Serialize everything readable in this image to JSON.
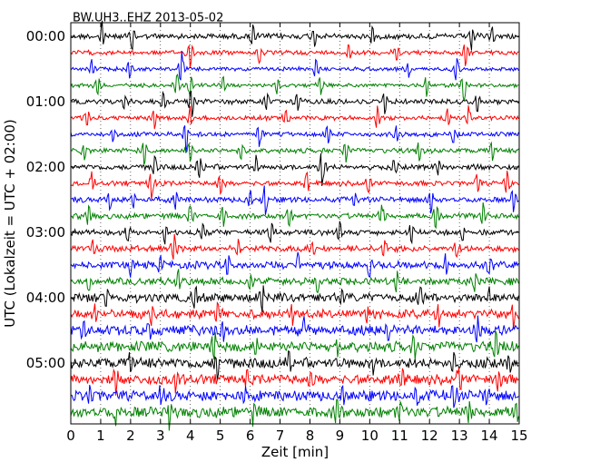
{
  "chart_data": {
    "type": "line",
    "title": "BW.UH3..EHZ 2013-05-02",
    "xlabel": "Zeit  [min]",
    "ylabel": "UTC (Lokalzeit = UTC + 02:00)",
    "xlim": [
      0,
      15
    ],
    "x_ticks": [
      "0",
      "1",
      "2",
      "3",
      "4",
      "5",
      "6",
      "7",
      "8",
      "9",
      "10",
      "11",
      "12",
      "13",
      "14",
      "15"
    ],
    "y_ticks": [
      "00:00",
      "01:00",
      "02:00",
      "03:00",
      "04:00",
      "05:00"
    ],
    "grid": "vertical dotted at each minute",
    "trace_minutes": 15,
    "trace_count": 24,
    "trace_colors": [
      "#000000",
      "#ff0000",
      "#0000ff",
      "#008000"
    ],
    "noise_level": [
      1.0,
      0.8,
      0.7,
      0.7,
      0.9,
      0.8,
      0.8,
      0.9,
      1.0,
      0.9,
      1.0,
      1.0,
      1.0,
      1.1,
      1.3,
      1.3,
      1.6,
      1.6,
      1.8,
      1.9,
      1.9,
      1.8,
      1.9,
      2.0
    ],
    "spikes": [
      [
        [
          1.05,
          1.0
        ],
        [
          2.05,
          1.0
        ],
        [
          6.1,
          0.9
        ],
        [
          8.15,
          0.7
        ],
        [
          10.1,
          0.8
        ],
        [
          13.4,
          1.0
        ],
        [
          14.1,
          0.7
        ]
      ],
      [
        [
          4.0,
          1.2
        ],
        [
          6.3,
          0.8
        ],
        [
          9.3,
          0.7
        ],
        [
          10.9,
          0.7
        ],
        [
          13.2,
          0.9
        ]
      ],
      [
        [
          0.7,
          0.7
        ],
        [
          1.95,
          0.8
        ],
        [
          3.7,
          1.4
        ],
        [
          8.2,
          0.8
        ],
        [
          11.3,
          0.7
        ],
        [
          12.9,
          1.0
        ]
      ],
      [
        [
          0.9,
          0.8
        ],
        [
          3.55,
          1.0
        ],
        [
          4.0,
          0.9
        ],
        [
          5.1,
          0.7
        ],
        [
          6.9,
          0.7
        ],
        [
          8.35,
          0.9
        ],
        [
          11.9,
          0.8
        ],
        [
          13.15,
          1.3
        ]
      ],
      [
        [
          1.8,
          0.7
        ],
        [
          3.1,
          0.8
        ],
        [
          4.05,
          1.4
        ],
        [
          6.55,
          0.8
        ],
        [
          7.6,
          0.7
        ],
        [
          10.5,
          0.8
        ],
        [
          13.6,
          0.8
        ]
      ],
      [
        [
          0.55,
          0.7
        ],
        [
          2.8,
          0.9
        ],
        [
          4.0,
          0.8
        ],
        [
          7.2,
          0.7
        ],
        [
          10.25,
          1.0
        ],
        [
          12.6,
          0.7
        ],
        [
          13.3,
          0.8
        ]
      ],
      [
        [
          1.4,
          0.7
        ],
        [
          3.85,
          1.3
        ],
        [
          6.3,
          0.9
        ],
        [
          8.6,
          0.7
        ],
        [
          10.9,
          0.7
        ],
        [
          12.8,
          0.8
        ]
      ],
      [
        [
          0.45,
          0.8
        ],
        [
          2.45,
          1.1
        ],
        [
          4.0,
          1.0
        ],
        [
          5.7,
          0.7
        ],
        [
          9.2,
          0.9
        ],
        [
          11.65,
          0.8
        ],
        [
          14.1,
          0.8
        ]
      ],
      [
        [
          2.8,
          0.9
        ],
        [
          4.3,
          1.0
        ],
        [
          6.2,
          0.8
        ],
        [
          8.4,
          1.4
        ],
        [
          10.8,
          0.8
        ],
        [
          12.3,
          0.8
        ]
      ],
      [
        [
          0.7,
          0.8
        ],
        [
          2.7,
          1.2
        ],
        [
          5.0,
          0.9
        ],
        [
          7.9,
          0.8
        ],
        [
          9.95,
          0.9
        ],
        [
          13.6,
          0.7
        ],
        [
          14.6,
          1.0
        ]
      ],
      [
        [
          1.3,
          0.8
        ],
        [
          2.1,
          0.7
        ],
        [
          3.5,
          0.7
        ],
        [
          6.0,
          0.8
        ],
        [
          6.5,
          1.3
        ],
        [
          9.5,
          0.8
        ],
        [
          12.05,
          1.0
        ],
        [
          14.8,
          0.9
        ]
      ],
      [
        [
          0.6,
          1.0
        ],
        [
          4.0,
          1.0
        ],
        [
          5.1,
          0.8
        ],
        [
          7.3,
          0.8
        ],
        [
          10.4,
          0.9
        ],
        [
          12.2,
          1.2
        ],
        [
          13.8,
          0.9
        ]
      ],
      [
        [
          1.9,
          0.8
        ],
        [
          3.15,
          0.8
        ],
        [
          4.4,
          0.8
        ],
        [
          6.7,
          0.8
        ],
        [
          9.0,
          0.8
        ],
        [
          11.4,
          0.9
        ],
        [
          13.1,
          0.7
        ]
      ],
      [
        [
          0.75,
          0.8
        ],
        [
          3.45,
          1.2
        ],
        [
          5.6,
          0.8
        ],
        [
          8.1,
          0.7
        ],
        [
          10.5,
          0.8
        ],
        [
          12.9,
          0.8
        ]
      ],
      [
        [
          2.0,
          0.8
        ],
        [
          3.0,
          0.7
        ],
        [
          5.25,
          0.9
        ],
        [
          7.6,
          0.8
        ],
        [
          10.0,
          1.0
        ],
        [
          12.55,
          0.9
        ],
        [
          14.0,
          0.8
        ]
      ],
      [
        [
          0.6,
          0.9
        ],
        [
          3.6,
          0.9
        ],
        [
          6.0,
          0.8
        ],
        [
          8.25,
          0.9
        ],
        [
          10.9,
          0.8
        ],
        [
          13.5,
          0.8
        ]
      ],
      [
        [
          1.2,
          0.8
        ],
        [
          4.15,
          1.2
        ],
        [
          6.4,
          1.3
        ],
        [
          9.1,
          0.8
        ],
        [
          11.7,
          0.9
        ],
        [
          14.0,
          0.8
        ]
      ],
      [
        [
          0.8,
          0.8
        ],
        [
          2.7,
          0.9
        ],
        [
          4.9,
          1.0
        ],
        [
          7.4,
          0.8
        ],
        [
          9.9,
          0.8
        ],
        [
          12.3,
          0.9
        ],
        [
          14.8,
          1.0
        ]
      ],
      [
        [
          0.45,
          1.1
        ],
        [
          2.6,
          0.8
        ],
        [
          5.1,
          1.0
        ],
        [
          7.8,
          0.8
        ],
        [
          10.6,
          1.0
        ],
        [
          13.6,
          1.2
        ]
      ],
      [
        [
          4.8,
          1.2
        ],
        [
          6.2,
          0.8
        ],
        [
          8.9,
          0.8
        ],
        [
          11.5,
          1.0
        ],
        [
          14.2,
          1.1
        ]
      ],
      [
        [
          2.0,
          1.0
        ],
        [
          4.9,
          1.0
        ],
        [
          7.3,
          0.8
        ],
        [
          10.1,
          0.8
        ],
        [
          12.8,
          1.0
        ],
        [
          14.7,
          0.9
        ]
      ],
      [
        [
          1.5,
          0.9
        ],
        [
          3.5,
          0.8
        ],
        [
          5.9,
          0.9
        ],
        [
          8.0,
          0.9
        ],
        [
          11.1,
          0.9
        ],
        [
          13.0,
          1.2
        ],
        [
          14.3,
          0.8
        ]
      ],
      [
        [
          0.6,
          0.9
        ],
        [
          3.0,
          0.9
        ],
        [
          5.8,
          0.8
        ],
        [
          9.1,
          0.9
        ],
        [
          11.6,
          0.8
        ],
        [
          12.8,
          1.3
        ],
        [
          13.9,
          0.8
        ]
      ],
      [
        [
          1.5,
          0.8
        ],
        [
          3.3,
          1.1
        ],
        [
          6.1,
          0.8
        ],
        [
          8.9,
          0.9
        ],
        [
          11.0,
          0.8
        ],
        [
          13.3,
          0.8
        ],
        [
          14.9,
          0.9
        ]
      ]
    ]
  }
}
